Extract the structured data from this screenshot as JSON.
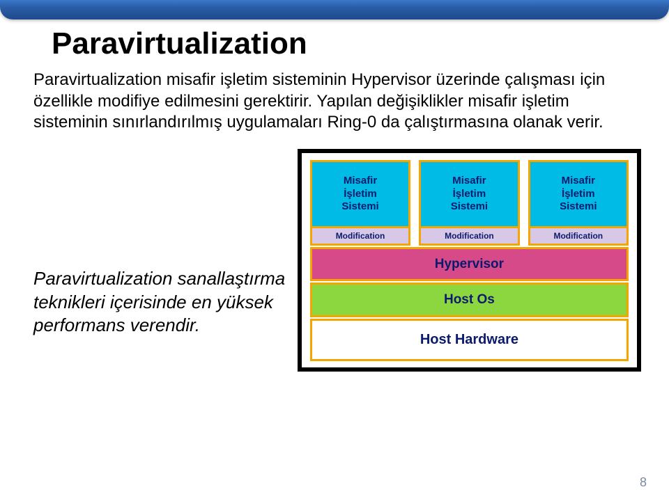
{
  "title": "Paravirtualization",
  "body": "Paravirtualization misafir işletim sisteminin Hypervisor üzerinde çalışması için özellikle modifiye edilmesini gerektirir. Yapılan değişiklikler misafir işletim sisteminin sınırlandırılmış uygulamaları Ring-0 da çalıştırmasına olanak verir.",
  "note": "Paravirtualization sanallaştırma teknikleri içerisinde en yüksek performans verendir.",
  "page_number": "8",
  "diagram": {
    "guest_label": "Misafir\nİşletim\nSistemi",
    "mod_label": "Modification",
    "hypervisor_label": "Hypervisor",
    "hostos_label": "Host Os",
    "hardware_label": "Host Hardware",
    "colors": {
      "outer_bg": "#000000",
      "inner_bg": "#ffffff",
      "border": "#f5a500",
      "guest_bg": "#00bbe5",
      "mod_bg": "#d6c8e6",
      "hypervisor_bg": "#d64a8a",
      "hostos_bg": "#8cd640",
      "hardware_bg": "#ffffff",
      "label_color": "#0b1a6d"
    }
  }
}
